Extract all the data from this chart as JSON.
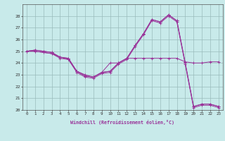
{
  "xlabel": "Windchill (Refroidissement éolien,°C)",
  "hours": [
    0,
    1,
    2,
    3,
    4,
    5,
    6,
    7,
    8,
    9,
    10,
    11,
    12,
    13,
    14,
    15,
    16,
    17,
    18,
    19,
    20,
    21,
    22,
    23
  ],
  "series": [
    [
      25.0,
      25.1,
      25.0,
      24.9,
      24.5,
      24.3,
      23.3,
      22.9,
      22.8,
      23.2,
      24.0,
      24.0,
      24.4,
      24.4,
      24.4,
      24.4,
      24.4,
      24.4,
      24.4,
      24.1,
      24.0,
      24.0,
      24.1,
      24.1
    ],
    [
      25.0,
      25.1,
      25.0,
      24.9,
      24.5,
      24.4,
      23.3,
      23.0,
      22.8,
      23.2,
      23.3,
      24.0,
      24.4,
      25.5,
      26.5,
      27.7,
      27.5,
      28.1,
      27.6,
      24.0,
      20.3,
      20.5,
      20.5,
      20.3
    ],
    [
      25.0,
      25.0,
      24.9,
      24.8,
      24.5,
      24.4,
      23.3,
      22.9,
      22.8,
      23.2,
      23.3,
      24.0,
      24.4,
      25.5,
      26.5,
      27.7,
      27.5,
      28.1,
      27.6,
      24.0,
      20.3,
      20.5,
      20.5,
      20.3
    ],
    [
      25.0,
      25.0,
      24.9,
      24.8,
      24.4,
      24.3,
      23.2,
      22.8,
      22.7,
      23.1,
      23.2,
      23.9,
      24.3,
      25.4,
      26.4,
      27.6,
      27.4,
      28.0,
      27.5,
      23.9,
      20.2,
      20.4,
      20.4,
      20.2
    ]
  ],
  "line_color": "#993399",
  "marker": "+",
  "bg_color": "#c8eaea",
  "grid_color": "#99bbbb",
  "ylim": [
    20,
    29
  ],
  "yticks": [
    20,
    21,
    22,
    23,
    24,
    25,
    26,
    27,
    28
  ],
  "xlim": [
    -0.5,
    23.5
  ]
}
